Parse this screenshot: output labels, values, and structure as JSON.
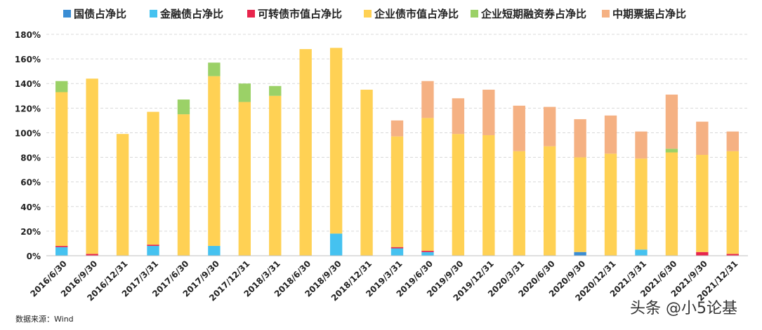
{
  "chart_data": {
    "type": "bar",
    "stacked": true,
    "title": "",
    "xlabel": "",
    "ylabel": "",
    "ylim": [
      0,
      180
    ],
    "y_ticks": [
      "0%",
      "20%",
      "40%",
      "60%",
      "80%",
      "100%",
      "120%",
      "140%",
      "160%",
      "180%"
    ],
    "grid": "horizontal dashed",
    "legend_placement": "top",
    "categories": [
      "2016/6/30",
      "2016/9/30",
      "2016/12/31",
      "2017/3/31",
      "2017/6/30",
      "2017/9/30",
      "2017/12/31",
      "2018/3/31",
      "2018/6/30",
      "2018/9/30",
      "2018/12/31",
      "2019/3/31",
      "2019/6/30",
      "2019/9/30",
      "2019/12/31",
      "2020/3/31",
      "2020/6/30",
      "2020/9/30",
      "2020/12/31",
      "2021/3/31",
      "2021/6/30",
      "2021/9/30",
      "2021/12/31"
    ],
    "series": [
      {
        "name": "国债占净比",
        "color": "#3A8DD4",
        "values": [
          0,
          0,
          0,
          0,
          0,
          0,
          0,
          0,
          0,
          0,
          0,
          0,
          0,
          0,
          0,
          0,
          0,
          3,
          0,
          0,
          0,
          0,
          0
        ]
      },
      {
        "name": "金融债占净比",
        "color": "#45C2F0",
        "values": [
          7,
          0,
          0,
          8,
          0,
          8,
          0,
          0,
          0,
          18,
          0,
          6,
          3,
          0,
          0,
          0,
          0,
          0,
          0,
          5,
          0,
          0,
          0
        ]
      },
      {
        "name": "可转债市值占净比",
        "color": "#E8254C",
        "values": [
          1,
          1.5,
          0,
          1,
          0,
          0,
          0,
          0,
          0,
          0,
          0,
          1,
          1,
          0,
          0,
          0,
          0,
          0,
          0,
          0,
          0,
          3,
          1.5
        ]
      },
      {
        "name": "企业债市值占净比",
        "color": "#FFD154",
        "values": [
          125,
          142.5,
          99,
          108,
          115,
          138,
          125,
          130,
          168,
          151,
          135,
          90,
          108,
          99,
          98,
          85,
          89,
          77,
          83,
          74,
          84,
          79,
          83.5
        ]
      },
      {
        "name": "企业短期融资券占净比",
        "color": "#9BD167",
        "values": [
          9,
          0,
          0,
          0,
          12,
          11,
          15,
          8,
          0,
          0,
          0,
          0,
          0,
          0,
          0,
          0,
          0,
          0,
          0,
          0,
          3,
          0,
          0
        ]
      },
      {
        "name": "中期票据占净比",
        "color": "#F5B183",
        "values": [
          0,
          0,
          0,
          0,
          0,
          0,
          0,
          0,
          0,
          0,
          0,
          13,
          30,
          29,
          37,
          37,
          32,
          31,
          31,
          22,
          44,
          27,
          16
        ]
      }
    ]
  },
  "source": "数据来源：Wind",
  "watermark": "头条 @小5论基"
}
